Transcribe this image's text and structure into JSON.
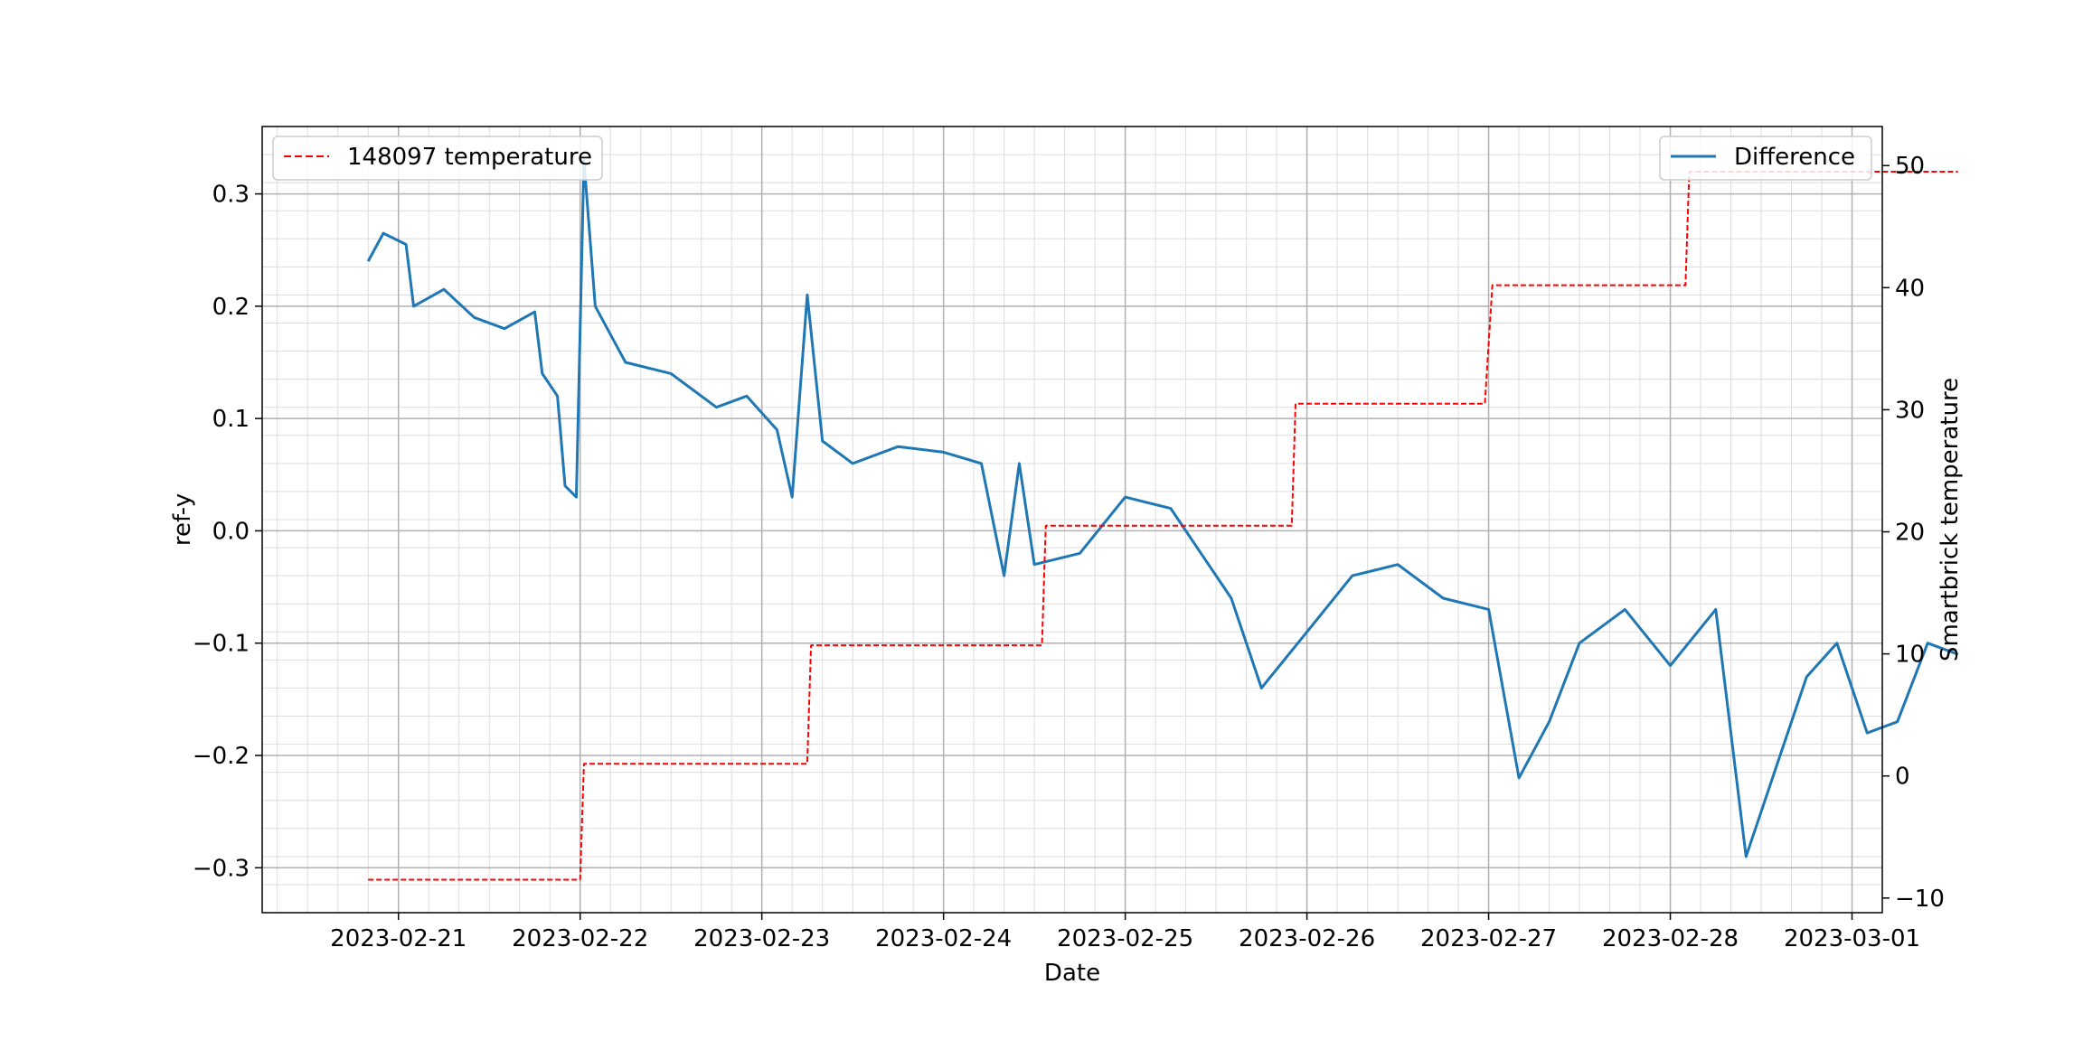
{
  "chart_data": {
    "type": "line",
    "title": "",
    "xlabel": "Date",
    "ylabel": "ref-y",
    "y2label": "Smartbrick temperature",
    "x_tick_labels": [
      "2023-02-21",
      "2023-02-22",
      "2023-02-23",
      "2023-02-24",
      "2023-02-25",
      "2023-02-26",
      "2023-02-27",
      "2023-02-28",
      "2023-03-01"
    ],
    "xlim": [
      "2023-02-20T06:00",
      "2023-03-01T04:00"
    ],
    "ylim": [
      -0.34,
      0.36
    ],
    "y_ticks": [
      -0.3,
      -0.2,
      -0.1,
      0.0,
      0.1,
      0.2,
      0.3
    ],
    "y_tick_labels": [
      "−0.3",
      "−0.2",
      "−0.1",
      "0.0",
      "0.1",
      "0.2",
      "0.3"
    ],
    "y2lim": [
      -11.2,
      53.2
    ],
    "y2_ticks": [
      -10,
      0,
      10,
      20,
      30,
      40,
      50
    ],
    "y2_tick_labels": [
      "−10",
      "0",
      "10",
      "20",
      "30",
      "40",
      "50"
    ],
    "grid": true,
    "legends": [
      {
        "position": "top-left",
        "label": "148097 temperature"
      },
      {
        "position": "top-right",
        "label": "Difference"
      }
    ],
    "series": [
      {
        "name": "Difference",
        "axis": "left",
        "color": "#1f77b4",
        "style": "solid",
        "points": [
          [
            "2023-02-20T20:00",
            0.24
          ],
          [
            "2023-02-20T22:00",
            0.265
          ],
          [
            "2023-02-21T01:00",
            0.255
          ],
          [
            "2023-02-21T02:00",
            0.2
          ],
          [
            "2023-02-21T06:00",
            0.215
          ],
          [
            "2023-02-21T10:00",
            0.19
          ],
          [
            "2023-02-21T14:00",
            0.18
          ],
          [
            "2023-02-21T18:00",
            0.195
          ],
          [
            "2023-02-21T19:00",
            0.14
          ],
          [
            "2023-02-21T21:00",
            0.12
          ],
          [
            "2023-02-21T22:00",
            0.04
          ],
          [
            "2023-02-21T23:30",
            0.03
          ],
          [
            "2023-02-22T00:30",
            0.33
          ],
          [
            "2023-02-22T02:00",
            0.2
          ],
          [
            "2023-02-22T06:00",
            0.15
          ],
          [
            "2023-02-22T12:00",
            0.14
          ],
          [
            "2023-02-22T18:00",
            0.11
          ],
          [
            "2023-02-22T22:00",
            0.12
          ],
          [
            "2023-02-23T02:00",
            0.09
          ],
          [
            "2023-02-23T04:00",
            0.03
          ],
          [
            "2023-02-23T06:00",
            0.21
          ],
          [
            "2023-02-23T08:00",
            0.08
          ],
          [
            "2023-02-23T12:00",
            0.06
          ],
          [
            "2023-02-23T18:00",
            0.075
          ],
          [
            "2023-02-24T00:00",
            0.07
          ],
          [
            "2023-02-24T05:00",
            0.06
          ],
          [
            "2023-02-24T08:00",
            -0.04
          ],
          [
            "2023-02-24T10:00",
            0.06
          ],
          [
            "2023-02-24T12:00",
            -0.03
          ],
          [
            "2023-02-24T18:00",
            -0.02
          ],
          [
            "2023-02-25T00:00",
            0.03
          ],
          [
            "2023-02-25T06:00",
            0.02
          ],
          [
            "2023-02-25T10:00",
            -0.02
          ],
          [
            "2023-02-25T14:00",
            -0.06
          ],
          [
            "2023-02-25T18:00",
            -0.14
          ],
          [
            "2023-02-26T00:00",
            -0.09
          ],
          [
            "2023-02-26T06:00",
            -0.04
          ],
          [
            "2023-02-26T12:00",
            -0.03
          ],
          [
            "2023-02-26T18:00",
            -0.06
          ],
          [
            "2023-02-27T00:00",
            -0.07
          ],
          [
            "2023-02-27T04:00",
            -0.22
          ],
          [
            "2023-02-27T08:00",
            -0.17
          ],
          [
            "2023-02-27T12:00",
            -0.1
          ],
          [
            "2023-02-27T18:00",
            -0.07
          ],
          [
            "2023-02-28T00:00",
            -0.12
          ],
          [
            "2023-02-28T06:00",
            -0.07
          ],
          [
            "2023-02-28T10:00",
            -0.29
          ],
          [
            "2023-02-28T14:00",
            -0.21
          ],
          [
            "2023-02-28T18:00",
            -0.13
          ],
          [
            "2023-02-28T22:00",
            -0.1
          ],
          [
            "2023-03-01T02:00",
            -0.18
          ],
          [
            "2023-03-01T06:00",
            -0.17
          ],
          [
            "2023-03-01T10:00",
            -0.1
          ],
          [
            "2023-03-01T14:00",
            -0.11
          ]
        ]
      },
      {
        "name": "148097 temperature",
        "axis": "right",
        "color": "#ff0000",
        "style": "dashed",
        "points": [
          [
            "2023-02-20T20:00",
            -8.5
          ],
          [
            "2023-02-21T22:00",
            -8.5
          ],
          [
            "2023-02-22T00:00",
            -8.5
          ],
          [
            "2023-02-22T00:30",
            1.0
          ],
          [
            "2023-02-23T00:00",
            1.0
          ],
          [
            "2023-02-23T06:00",
            1.0
          ],
          [
            "2023-02-23T06:30",
            10.7
          ],
          [
            "2023-02-24T12:00",
            10.7
          ],
          [
            "2023-02-24T13:00",
            10.7
          ],
          [
            "2023-02-24T13:30",
            20.5
          ],
          [
            "2023-02-25T22:00",
            20.5
          ],
          [
            "2023-02-25T22:30",
            30.5
          ],
          [
            "2023-02-26T23:30",
            30.5
          ],
          [
            "2023-02-27T00:30",
            40.2
          ],
          [
            "2023-02-28T02:00",
            40.2
          ],
          [
            "2023-02-28T02:30",
            49.5
          ],
          [
            "2023-03-01T14:00",
            49.5
          ]
        ]
      }
    ]
  }
}
